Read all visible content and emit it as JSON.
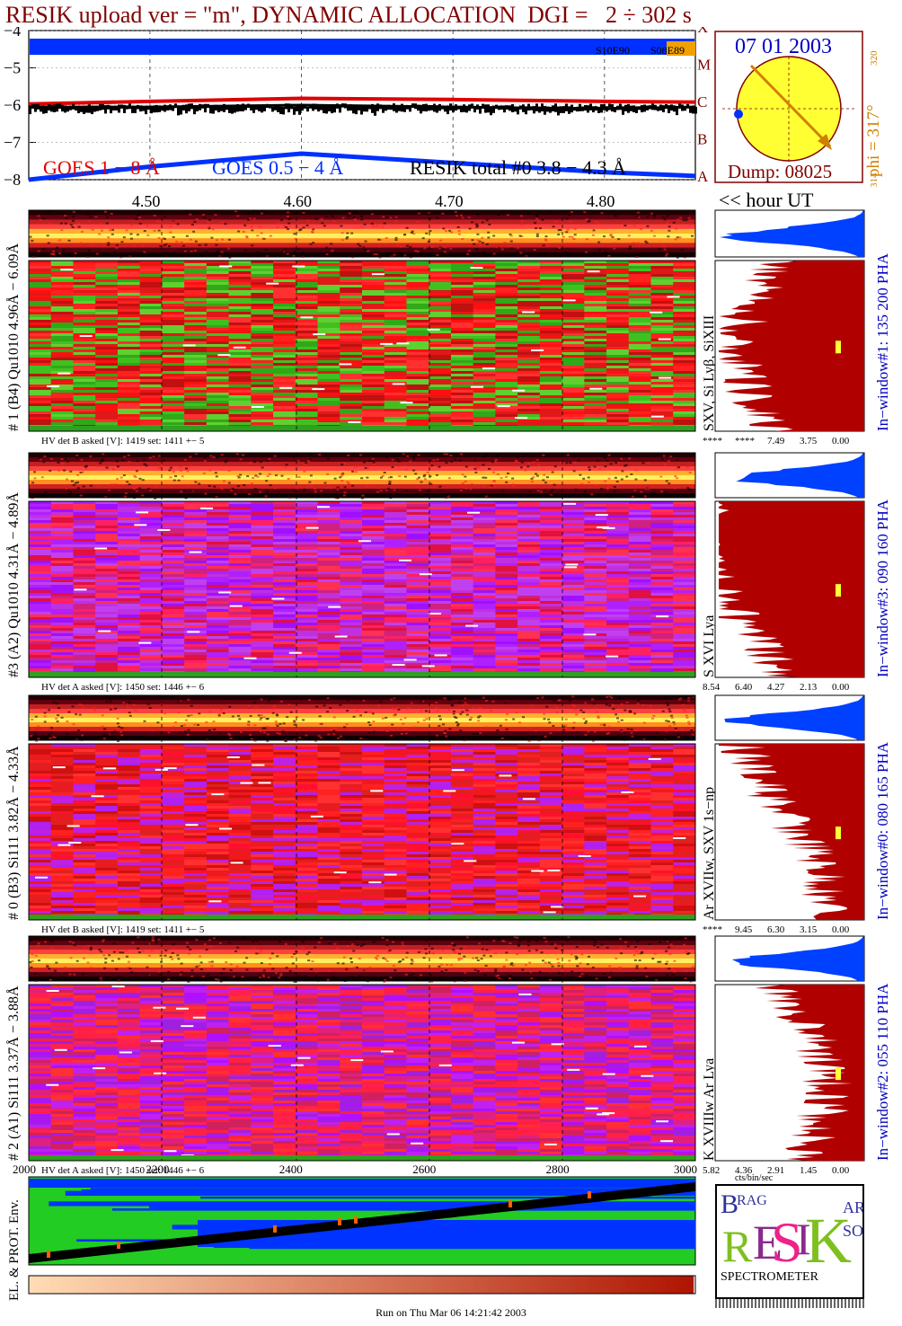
{
  "header": {
    "title": "RESIK upload ver = \"m\", DYNAMIC ALLOCATION  DGI =   2 ÷ 302 s"
  },
  "colors": {
    "title": "#800000",
    "goes_1_8": "#e00000",
    "goes_05_4": "#0030ff",
    "resik_total": "#000000",
    "blue_label": "#0000c0",
    "orange_label": "#d08000",
    "spectrum_fill": "#b00000",
    "pha_fill": "#0040ff",
    "sun_disk": "#ffff33",
    "sun_border": "#800000"
  },
  "lightcurve": {
    "y_ticks": [
      "−4",
      "−5",
      "−6",
      "−7",
      "−8"
    ],
    "x_ticks": [
      "4.50",
      "4.60",
      "4.70",
      "4.80"
    ],
    "class_letters": [
      "A",
      "B",
      "C",
      "M",
      "X"
    ],
    "markers": [
      "S10E90",
      "S08E89"
    ],
    "legend": {
      "goes_1_8": "GOES 1 − 8 Å",
      "goes_05_4": "GOES 0.5 − 4 Å",
      "resik_total": "RESIK total #0  3.8 − 4.3 Å"
    },
    "hour_label": "<< hour UT"
  },
  "orbit": {
    "date": "07 01 2003",
    "phi": "phi = 317°",
    "tick_top": "320",
    "tick_bottom": "314",
    "dump": "Dump: 08025"
  },
  "channels": [
    {
      "left_label": "# 1 (B4) Qu1010  4.96Å − 6.09Å",
      "line_label": "SXV,  Si Lyβ, SiXIII",
      "window_label": "In−window#1:  135 200 PHA",
      "hv_label": "HV det B asked [V]:  1419 set:  1411  +−     5",
      "scale": [
        "****",
        "****",
        "7.49",
        "3.75",
        "0.00"
      ]
    },
    {
      "left_label": "#3 (A2) Qu1010  4.31Å − 4.89Å",
      "line_label": "S XVI Lya",
      "window_label": "In−window#3:  090 160 PHA",
      "hv_label": "HV det A asked [V]:  1450 set:  1446  +−     6",
      "scale": [
        "8.54",
        "6.40",
        "4.27",
        "2.13",
        "0.00"
      ]
    },
    {
      "left_label": "# 0 (B3) Si111  3.82Å − 4.33Å",
      "line_label": "Ar XVIIw,  SXV 1s−np",
      "window_label": "In−window#0:  080 165 PHA",
      "hv_label": "HV det B asked [V]:  1419 set:  1411  +−     5",
      "scale": [
        "****",
        "9.45",
        "6.30",
        "3.15",
        "0.00"
      ]
    },
    {
      "left_label": "# 2 (A1) Si111  3.37Å − 3.88Å",
      "line_label": "K XVIIIw  Ar Lya",
      "window_label": "In−window#2:  055 110 PHA",
      "hv_label": "HV det A asked [V]:  1450 set:  1446  +−     6",
      "scale": [
        "5.82",
        "4.36",
        "2.91",
        "1.45",
        "0.00"
      ]
    }
  ],
  "bottom_axis": {
    "ticks": [
      "2000",
      "2200",
      "2400",
      "2600",
      "2800",
      "3000"
    ],
    "units": "cts/bin/sec"
  },
  "env_label": "EL. & PROT. Env.",
  "logo": {
    "letters": [
      "B",
      "RAG",
      "R",
      "E",
      "S",
      "I",
      "K",
      "SOL",
      "AR"
    ],
    "text": "SPECTROMETER"
  },
  "footer": "Run on Thu Mar 06 14:21:42 2003",
  "chart_data": [
    {
      "type": "line",
      "title": "RESIK upload ver = \"m\", DYNAMIC ALLOCATION  DGI =   2 ÷ 302 s",
      "xlabel": "<< hour UT",
      "ylabel": "",
      "xlim": [
        4.42,
        4.86
      ],
      "ylim": [
        -8.0,
        -4.0
      ],
      "series": [
        {
          "name": "GOES 1 − 8 Å",
          "x": [
            4.42,
            4.5,
            4.6,
            4.7,
            4.8,
            4.86
          ],
          "y": [
            -5.97,
            -5.9,
            -5.82,
            -5.85,
            -5.9,
            -5.92
          ]
        },
        {
          "name": "GOES 0.5 − 4 Å",
          "x": [
            4.42,
            4.5,
            4.6,
            4.7,
            4.8,
            4.86
          ],
          "y": [
            -8.0,
            -7.65,
            -7.3,
            -7.55,
            -7.8,
            -7.9
          ]
        },
        {
          "name": "RESIK total #0  3.8 − 4.3 Å",
          "x": [
            4.42,
            4.5,
            4.6,
            4.7,
            4.8,
            4.86
          ],
          "y": [
            -6.05,
            -6.05,
            -6.0,
            -6.05,
            -6.1,
            -6.05
          ]
        }
      ]
    }
  ]
}
